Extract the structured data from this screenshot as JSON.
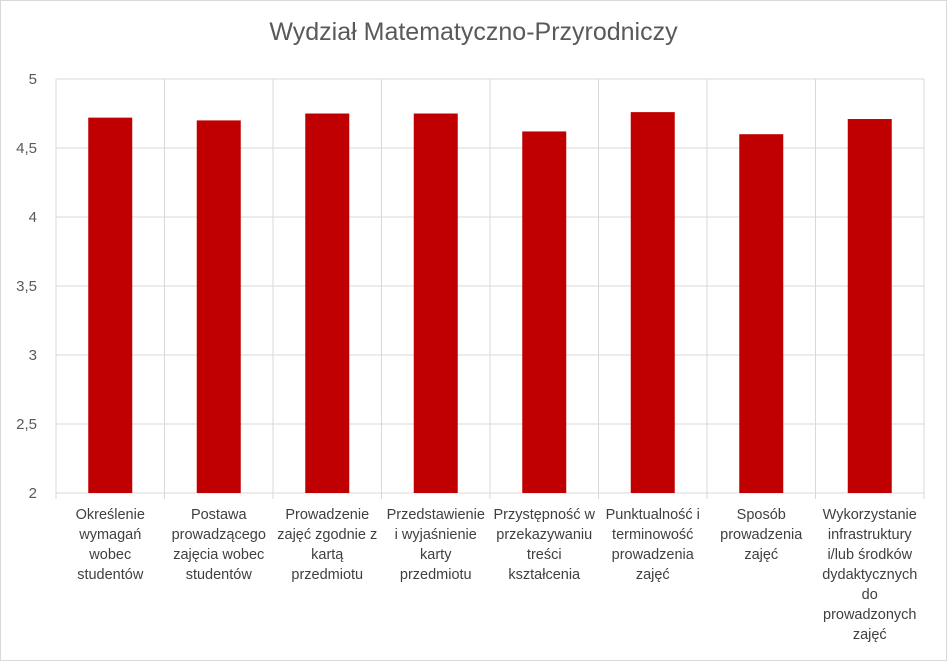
{
  "chart_data": {
    "type": "bar",
    "title": "Wydział Matematyczno-Przyrodniczy",
    "xlabel": "",
    "ylabel": "",
    "ylim": [
      2,
      5
    ],
    "yticks": [
      "2",
      "2,5",
      "3",
      "3,5",
      "4",
      "4,5",
      "5"
    ],
    "ytick_values": [
      2,
      2.5,
      3,
      3.5,
      4,
      4.5,
      5
    ],
    "grid": true,
    "legend": "none",
    "bar_color": "#c00000",
    "categories": [
      "Określenie wymagań wobec studentów",
      "Postawa prowadzącego zajęcia wobec studentów",
      "Prowadzenie zajęć zgodnie z kartą przedmiotu",
      "Przedstawienie i wyjaśnienie karty przedmiotu",
      "Przystępność w przekazywaniu treści kształcenia",
      "Punktualność i terminowość prowadzenia zajęć",
      "Sposób prowadzenia zajęć",
      "Wykorzystanie infrastruktury i/lub środków dydaktycznych do prowadzonych zajęć"
    ],
    "values": [
      4.72,
      4.7,
      4.75,
      4.75,
      4.62,
      4.76,
      4.6,
      4.71
    ]
  }
}
